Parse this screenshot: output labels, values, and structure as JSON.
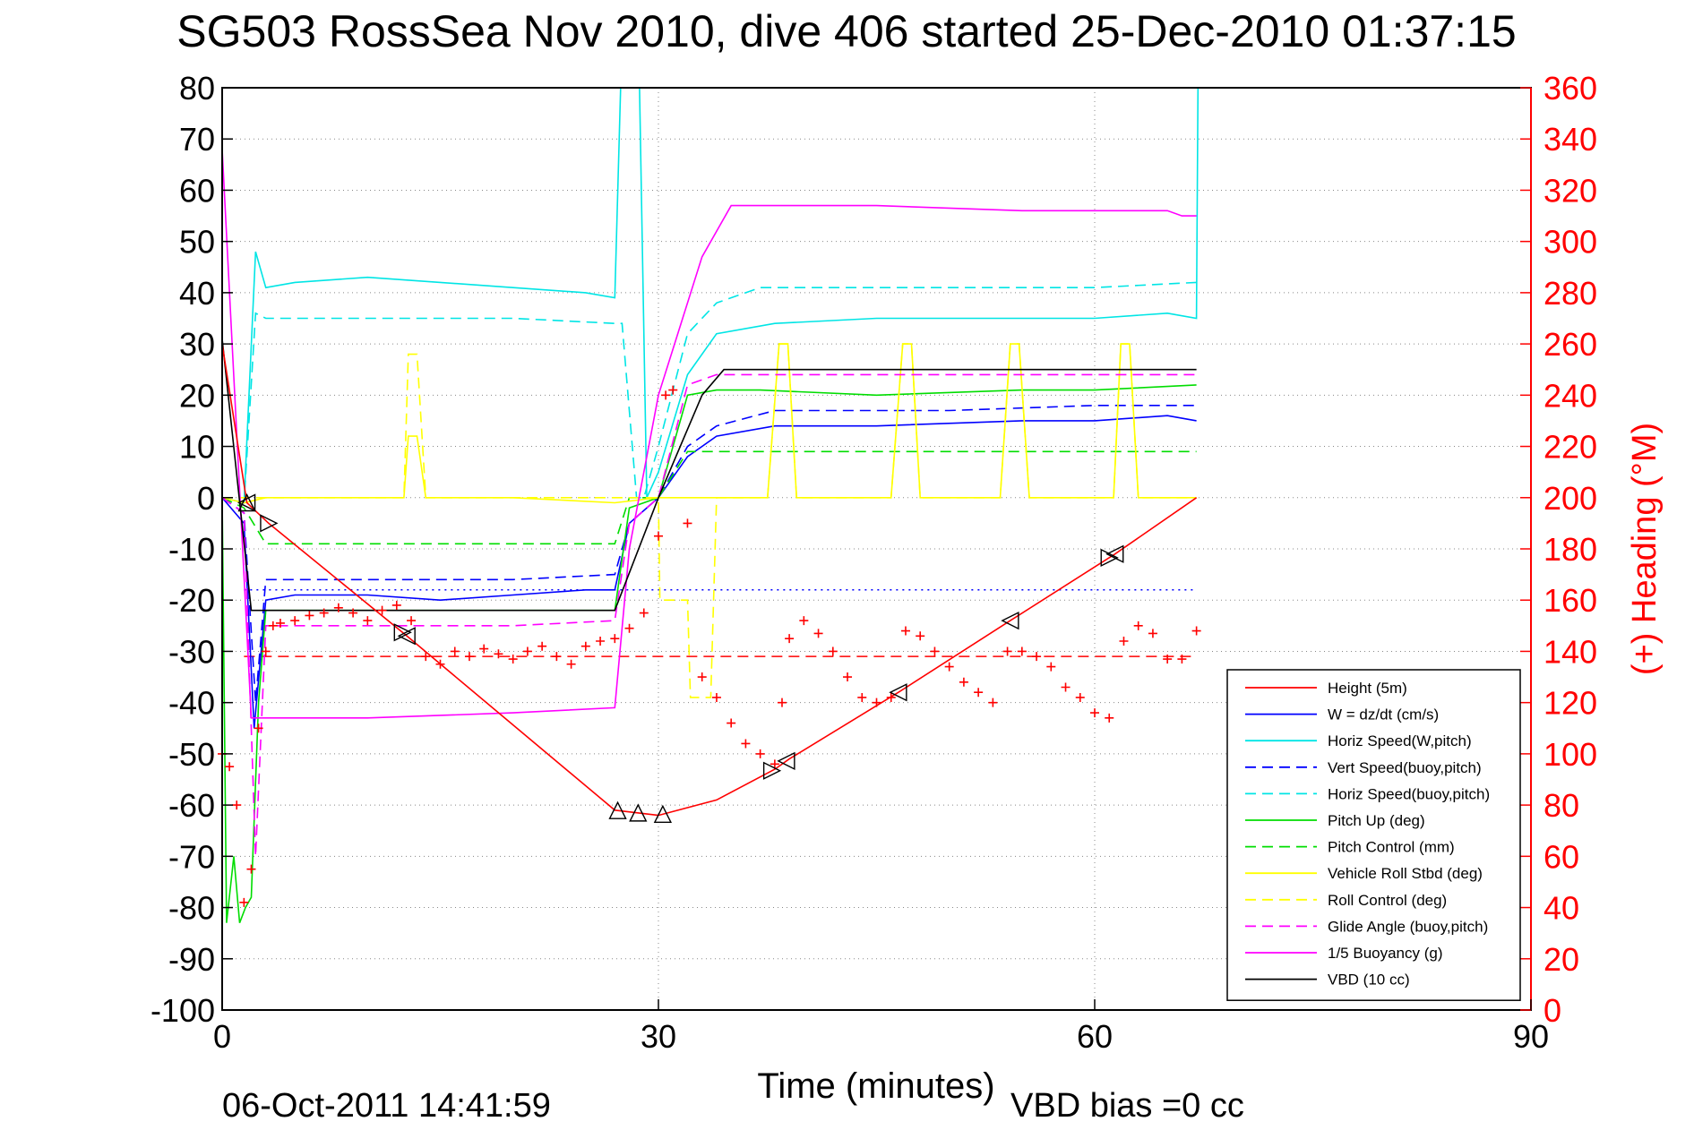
{
  "title": "SG503 RossSea Nov 2010, dive 406 started 25-Dec-2010 01:37:15",
  "footer": {
    "timestamp": "06-Oct-2011 14:41:59",
    "vbd_bias": "VBD bias =0 cc"
  },
  "colors": {
    "red": "#ff0000",
    "blue": "#0000ff",
    "cyan": "#00e5e5",
    "green": "#00dd00",
    "yellow": "#ffff00",
    "magenta": "#ff00ff",
    "black": "#000000"
  },
  "chart_data": {
    "type": "line",
    "title": "SG503 RossSea Nov 2010, dive 406 started 25-Dec-2010 01:37:15",
    "xlabel": "Time (minutes)",
    "ylabel": "",
    "y2label": "(+) Heading (°M)",
    "xlim": [
      0,
      90
    ],
    "ylim": [
      -100,
      80
    ],
    "y2lim": [
      0,
      360
    ],
    "xticks": [
      0,
      30,
      60,
      90
    ],
    "yticks": [
      80,
      70,
      60,
      50,
      40,
      30,
      20,
      10,
      0,
      -10,
      -20,
      -30,
      -40,
      -50,
      -60,
      -70,
      -80,
      -90,
      -100
    ],
    "y2ticks": [
      360,
      340,
      320,
      300,
      280,
      260,
      240,
      220,
      200,
      180,
      160,
      140,
      120,
      100,
      80,
      60,
      40,
      20,
      0
    ],
    "grid": true,
    "legend_position": "bottom-right",
    "series": [
      {
        "name": "Height (5m)",
        "color": "#ff0000",
        "style": "solid",
        "x": [
          0,
          1.7,
          3.2,
          12.7,
          27,
          30,
          34,
          38,
          39,
          46.5,
          54.2,
          61.4,
          67
        ],
        "y": [
          30,
          -1,
          -5,
          -27,
          -61,
          -62,
          -59,
          -53,
          -51,
          -38,
          -24,
          -11,
          0
        ]
      },
      {
        "name": "W = dz/dt (cm/s)",
        "color": "#0000ff",
        "style": "solid",
        "x": [
          0,
          1.5,
          2.2,
          3,
          5,
          10,
          15,
          20,
          25,
          27,
          28,
          30,
          32,
          34,
          38,
          45,
          55,
          60,
          65,
          67
        ],
        "y": [
          0,
          -5,
          -45,
          -20,
          -19,
          -19,
          -20,
          -19,
          -18,
          -18,
          -5,
          0,
          8,
          12,
          14,
          14,
          15,
          15,
          16,
          15
        ]
      },
      {
        "name": "Horiz Speed(W,pitch)",
        "color": "#00e5e5",
        "style": "solid",
        "x": [
          0,
          1.5,
          2.3,
          3,
          5,
          10,
          15,
          20,
          25,
          27,
          27.4,
          28.7,
          29.2,
          30,
          32,
          34,
          38,
          45,
          55,
          60,
          65,
          67,
          67.1
        ],
        "y": [
          0,
          -1,
          48,
          41,
          42,
          43,
          42,
          41,
          40,
          39,
          80,
          80,
          0,
          5,
          24,
          32,
          34,
          35,
          35,
          35,
          36,
          35,
          80
        ]
      },
      {
        "name": "Vert Speed(buoy,pitch)",
        "color": "#0000ff",
        "style": "dashed",
        "x": [
          0,
          1.5,
          2.3,
          3,
          10,
          20,
          27,
          28,
          30,
          32,
          34,
          38,
          50,
          60,
          67
        ],
        "y": [
          0,
          -3,
          -40,
          -16,
          -16,
          -16,
          -15,
          -5,
          0,
          10,
          14,
          17,
          17,
          18,
          18
        ]
      },
      {
        "name": "Horiz Speed(buoy,pitch)",
        "color": "#00e5e5",
        "style": "dashed",
        "x": [
          0,
          1.5,
          2.3,
          3,
          10,
          20,
          27,
          27.5,
          28.5,
          29,
          30,
          32,
          34,
          37,
          45,
          55,
          60,
          67
        ],
        "y": [
          0,
          -1,
          36,
          35,
          35,
          35,
          34,
          34,
          0,
          0,
          10,
          32,
          38,
          41,
          41,
          41,
          41,
          42
        ]
      },
      {
        "name": "Pitch Up (deg)",
        "color": "#00dd00",
        "style": "solid",
        "x": [
          0,
          0.3,
          0.8,
          1.2,
          1.6,
          2,
          2.5,
          3,
          10,
          20,
          27,
          28,
          30,
          32,
          34,
          37,
          45,
          55,
          60,
          67
        ],
        "y": [
          0,
          -83,
          -70,
          -83,
          -80,
          -78,
          -40,
          -22,
          -22,
          -22,
          -22,
          -2,
          0,
          20,
          21,
          21,
          20,
          21,
          21,
          22
        ]
      },
      {
        "name": "Pitch Control (mm)",
        "color": "#00dd00",
        "style": "dashed",
        "x": [
          0,
          1.5,
          3,
          10,
          20,
          27,
          28,
          30,
          32,
          40,
          50,
          60,
          67
        ],
        "y": [
          0,
          -2,
          -9,
          -9,
          -9,
          -9,
          0,
          0,
          9,
          9,
          9,
          9,
          9
        ]
      },
      {
        "name": "Vehicle Roll Stbd (deg)",
        "color": "#ffff00",
        "style": "solid",
        "x": [
          0,
          1.5,
          3,
          12.5,
          12.8,
          13.4,
          14,
          20,
          27,
          30,
          31,
          33.6,
          34,
          37.5,
          38.3,
          38.9,
          39.5,
          46,
          46.8,
          47.4,
          48,
          53.5,
          54.2,
          54.8,
          55.5,
          61.3,
          61.8,
          62.4,
          63,
          67
        ],
        "y": [
          0,
          -1,
          0,
          0,
          12,
          12,
          0,
          0,
          -1,
          0,
          0,
          0,
          0,
          0,
          30,
          30,
          0,
          0,
          30,
          30,
          0,
          0,
          30,
          30,
          0,
          0,
          30,
          30,
          0,
          0
        ]
      },
      {
        "name": "Roll Control (deg)",
        "color": "#ffff00",
        "style": "dashed",
        "x": [
          0,
          1.5,
          3,
          12.5,
          12.8,
          13.4,
          14,
          27,
          30,
          30.1,
          32,
          32.2,
          33.6,
          34,
          37.5,
          38.3,
          38.9,
          39.5,
          46,
          46.8,
          47.4,
          48,
          53.5,
          54.2,
          54.8,
          55.5,
          61.3,
          61.8,
          62.4,
          63,
          67
        ],
        "y": [
          0,
          0,
          0,
          0,
          28,
          28,
          0,
          0,
          0,
          -20,
          -20,
          -39,
          -39,
          0,
          0,
          30,
          30,
          0,
          0,
          30,
          30,
          0,
          0,
          30,
          30,
          0,
          0,
          30,
          30,
          0,
          0
        ]
      },
      {
        "name": "Glide Angle (buoy,pitch)",
        "color": "#ff00ff",
        "style": "dashed",
        "x": [
          0,
          1.5,
          2.3,
          3,
          10,
          20,
          27,
          28,
          30,
          32,
          34,
          38,
          45,
          55,
          60,
          67
        ],
        "y": [
          0,
          -3,
          -70,
          -25,
          -25,
          -25,
          -24,
          -5,
          0,
          22,
          24,
          24,
          24,
          24,
          24,
          24
        ]
      },
      {
        "name": "1/5 Buoyancy (g)",
        "color": "#ff00ff",
        "style": "solid",
        "x": [
          0,
          2,
          2.5,
          3,
          10,
          20,
          27,
          28,
          30,
          33,
          35,
          45,
          55,
          60,
          65,
          66,
          67
        ],
        "y": [
          68,
          -43,
          -43,
          -43,
          -43,
          -42,
          -41,
          -10,
          20,
          47,
          57,
          57,
          56,
          56,
          56,
          55,
          55
        ]
      },
      {
        "name": "VBD (10 cc)",
        "color": "#000000",
        "style": "solid",
        "x": [
          0,
          2,
          3,
          10,
          27,
          30,
          33,
          34.5,
          40,
          67
        ],
        "y": [
          31,
          -22,
          -22,
          -22,
          -22,
          0,
          20,
          25,
          25,
          25
        ]
      }
    ],
    "heading": {
      "name": "Heading",
      "color": "#ff0000",
      "marker": "+",
      "x": [
        0,
        0.5,
        1,
        1.5,
        2,
        2.5,
        3,
        3.5,
        4,
        5,
        6,
        7,
        8,
        9,
        10,
        11,
        12,
        13,
        14,
        15,
        16,
        17,
        18,
        19,
        20,
        21,
        22,
        23,
        24,
        25,
        26,
        27,
        28,
        29,
        30,
        30.5,
        31,
        32,
        33,
        34,
        35,
        36,
        37,
        38,
        38.5,
        39,
        40,
        41,
        42,
        43,
        44,
        45,
        46,
        47,
        48,
        49,
        50,
        51,
        52,
        53,
        54,
        55,
        56,
        57,
        58,
        59,
        60,
        61,
        62,
        63,
        64,
        65,
        66,
        67
      ],
      "y": [
        100,
        95,
        80,
        42,
        55,
        110,
        140,
        150,
        151,
        152,
        154,
        155,
        157,
        155,
        152,
        156,
        158,
        152,
        138,
        135,
        140,
        138,
        141,
        139,
        137,
        140,
        142,
        138,
        135,
        142,
        144,
        145,
        149,
        155,
        185,
        240,
        242,
        190,
        130,
        122,
        112,
        104,
        100,
        96,
        120,
        145,
        152,
        147,
        140,
        130,
        122,
        120,
        122,
        148,
        146,
        140,
        134,
        128,
        124,
        120,
        140,
        140,
        138,
        134,
        126,
        122,
        116,
        114,
        144,
        150,
        147,
        137,
        137,
        148
      ]
    },
    "reference_lines": [
      {
        "axis": "y",
        "value": -31,
        "color": "#ff0000",
        "style": "dashed"
      },
      {
        "axis": "y",
        "value": -18,
        "color": "#0000ff",
        "style": "dotted"
      }
    ],
    "markers": {
      "left": [
        1.7,
        12.7,
        38.8,
        46.5,
        54.2,
        61.4
      ],
      "right": [
        3.2,
        12.4,
        37.8,
        61.0
      ],
      "up": [
        1.7,
        27.2,
        28.6,
        30.3
      ]
    }
  }
}
